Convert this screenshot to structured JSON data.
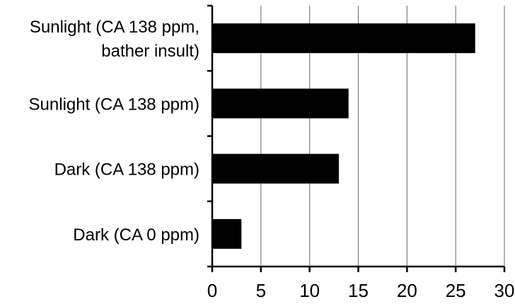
{
  "chart_data": {
    "type": "bar",
    "orientation": "horizontal",
    "categories": [
      [
        "Sunlight (CA 138 ppm,",
        "bather insult)"
      ],
      [
        "Sunlight (CA 138 ppm)"
      ],
      [
        "Dark (CA 138 ppm)"
      ],
      [
        "Dark (CA 0 ppm)"
      ]
    ],
    "values": [
      27,
      14,
      13,
      3
    ],
    "xlim": [
      0,
      30
    ],
    "xticks": [
      0,
      5,
      10,
      15,
      20,
      25,
      30
    ],
    "grid": "vertical",
    "bar_color": "#000000",
    "grid_color": "#808080",
    "title": "",
    "xlabel": "",
    "ylabel": ""
  }
}
